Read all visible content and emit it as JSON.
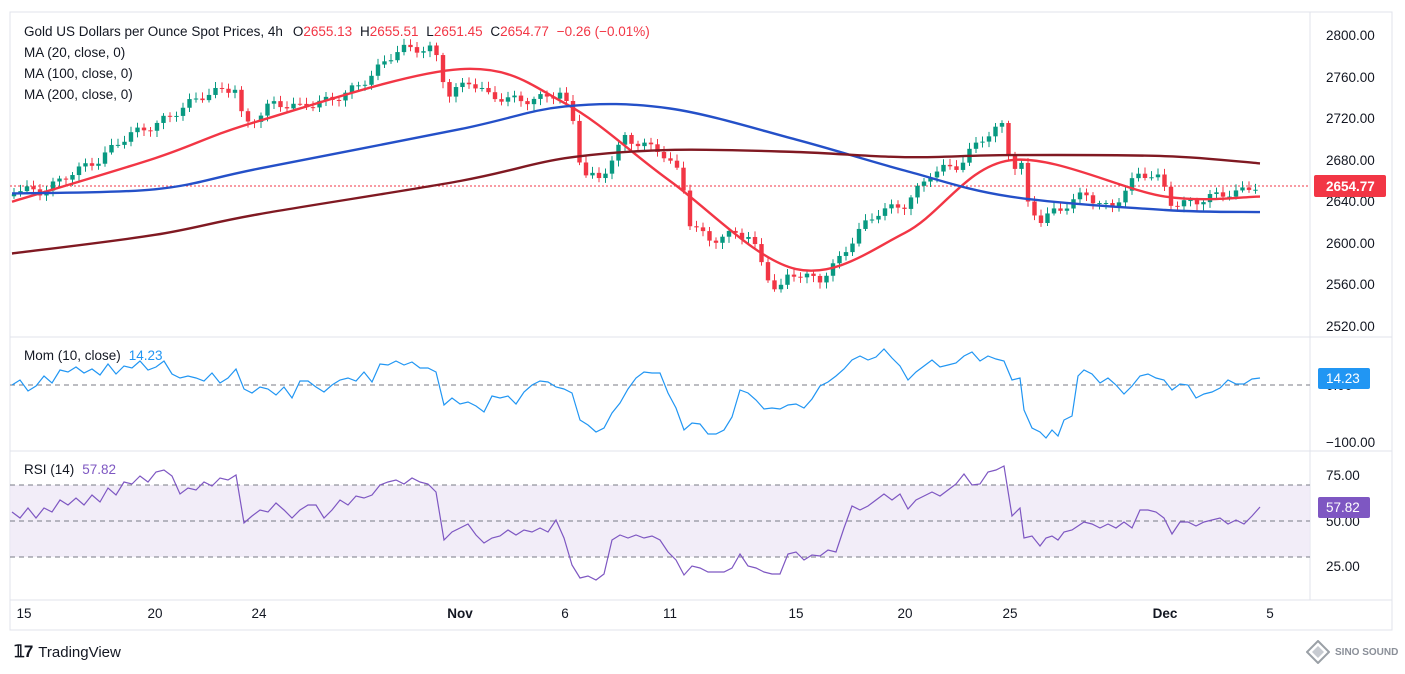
{
  "header": {
    "title": "Gold US Dollars per Ounce Spot Prices, 4h",
    "open_label": "O",
    "open": "2655.13",
    "high_label": "H",
    "high": "2655.51",
    "low_label": "L",
    "low": "2651.45",
    "close_label": "C",
    "close": "2654.77",
    "change": "−0.26 (−0.01%)",
    "ma_labels": [
      "MA (20, close, 0)",
      "MA (100, close, 0)",
      "MA (200, close, 0)"
    ]
  },
  "momentum": {
    "label": "Mom (10, close)",
    "value": "14.23"
  },
  "rsi": {
    "label": "RSI (14)",
    "value": "57.82"
  },
  "price_axis_ticks": [
    "2800.00",
    "2760.00",
    "2720.00",
    "2680.00",
    "2640.00",
    "2600.00",
    "2560.00",
    "2520.00"
  ],
  "mom_axis_ticks": [
    "0.00",
    "−100.00"
  ],
  "rsi_axis_ticks": [
    "75.00",
    "50.00",
    "25.00"
  ],
  "last_price_badge": "2654.77",
  "date_ticks": [
    "15",
    "20",
    "24",
    "Nov",
    "6",
    "11",
    "15",
    "20",
    "25",
    "Dec",
    "5"
  ],
  "branding": {
    "tradingview": "TradingView",
    "watermark": "SINO SOUND"
  },
  "colors": {
    "up": "#089981",
    "down": "#f23645",
    "ma20": "#f23645",
    "ma100": "#2450c8",
    "ma200": "#801922",
    "mom": "#2196f3",
    "rsi": "#7e57c2"
  },
  "chart_data": {
    "type": "line",
    "x": [
      "Oct 15",
      "Oct 20",
      "Oct 24",
      "Nov 1",
      "Nov 6",
      "Nov 11",
      "Nov 15",
      "Nov 20",
      "Nov 25",
      "Dec 1",
      "Dec 5"
    ],
    "series": [
      {
        "name": "MA (20, close, 0)",
        "values": [
          2640,
          2682,
          2718,
          2768,
          2735,
          2660,
          2575,
          2610,
          2680,
          2645,
          2645
        ]
      },
      {
        "name": "MA (100, close, 0)",
        "values": [
          2648,
          2652,
          2672,
          2710,
          2732,
          2730,
          2700,
          2670,
          2645,
          2632,
          2630
        ]
      },
      {
        "name": "MA (200, close, 0)",
        "values": [
          2590,
          2608,
          2628,
          2660,
          2682,
          2690,
          2688,
          2683,
          2685,
          2684,
          2677
        ]
      }
    ],
    "ylim": [
      2510,
      2812
    ]
  }
}
